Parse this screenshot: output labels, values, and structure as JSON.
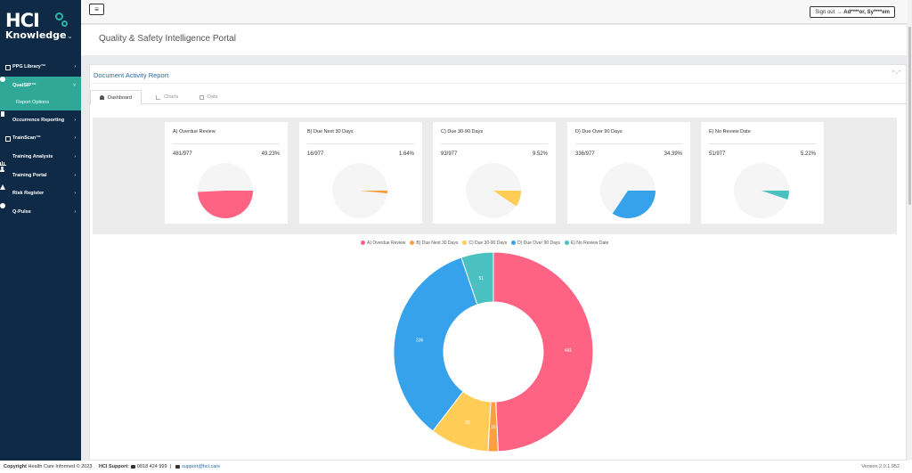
{
  "sidebar": {
    "logo": {
      "line1": "HCI",
      "line2": "Knowledge",
      "tm": "™"
    },
    "items": [
      {
        "label": "PPG Library™",
        "icon": "tag-icon"
      },
      {
        "label": "QualSIP™",
        "icon": "star-icon"
      },
      {
        "label": "Occurrence Reporting",
        "icon": "document-icon"
      },
      {
        "label": "TrainScan™",
        "icon": "monitor-icon"
      },
      {
        "label": "Training Analysis",
        "icon": "bar-chart-icon"
      },
      {
        "label": "Training Portal",
        "icon": "graduation-cap-icon"
      },
      {
        "label": "Risk Register",
        "icon": "warning-icon"
      },
      {
        "label": "Q-Pulse",
        "icon": "globe-icon"
      }
    ],
    "sub_item": "Report Options",
    "chevron": "›",
    "chevron_open": "˅"
  },
  "topbar": {
    "menu_glyph": "≡",
    "signout_label": "Sign out",
    "user_name": "Ad****or, Sy****em"
  },
  "header": {
    "title": "Quality & Safety Intelligence Portal"
  },
  "panel": {
    "title": "Document Activity Report",
    "tools": "^ ⤢",
    "tabs": [
      {
        "label": "Dashboard",
        "icon": "dashboard-icon"
      },
      {
        "label": "Charts",
        "icon": "line-chart-icon"
      },
      {
        "label": "Data",
        "icon": "table-icon"
      }
    ]
  },
  "colors": {
    "overdue": "#ff6384",
    "due30": "#ff9f40",
    "due3090": "#ffcd56",
    "over90": "#36a2eb",
    "noreview": "#4bc0c0",
    "empty": "#f5f5f5"
  },
  "cards": [
    {
      "title": "A) Overdue Review",
      "count": "481/977",
      "pct": "49.23%",
      "value": 481,
      "color_key": "overdue"
    },
    {
      "title": "B) Due Next 30 Days",
      "count": "16/977",
      "pct": "1.64%",
      "value": 16,
      "color_key": "due30"
    },
    {
      "title": "C) Due 30-90 Days",
      "count": "93/977",
      "pct": "9.52%",
      "value": 93,
      "color_key": "due3090"
    },
    {
      "title": "D) Due Over 90 Days",
      "count": "336/977",
      "pct": "34.39%",
      "value": 336,
      "color_key": "over90"
    },
    {
      "title": "E) No Review Date",
      "count": "51/977",
      "pct": "5.22%",
      "value": 51,
      "color_key": "noreview"
    }
  ],
  "chart_data": {
    "type": "pie",
    "donut": true,
    "total": 977,
    "categories": [
      "A) Overdue Review",
      "B) Due Next 30 Days",
      "C) Due 30-90 Days",
      "D) Due Over 90 Days",
      "E) No Review Date"
    ],
    "values": [
      481,
      16,
      93,
      336,
      51
    ],
    "data_labels": [
      "481",
      "16",
      "93",
      "336",
      "51"
    ],
    "colors": [
      "#ff6384",
      "#ff9f40",
      "#ffcd56",
      "#36a2eb",
      "#4bc0c0"
    ],
    "legend_position": "top"
  },
  "footer": {
    "copyright_label": "Copyright",
    "copyright_text": "Health Care Informed © 2023",
    "support_label": "HCI Support:",
    "phone": "0818 424 999",
    "email": "support@hci.care",
    "version": "Version 2.0.1.952"
  }
}
